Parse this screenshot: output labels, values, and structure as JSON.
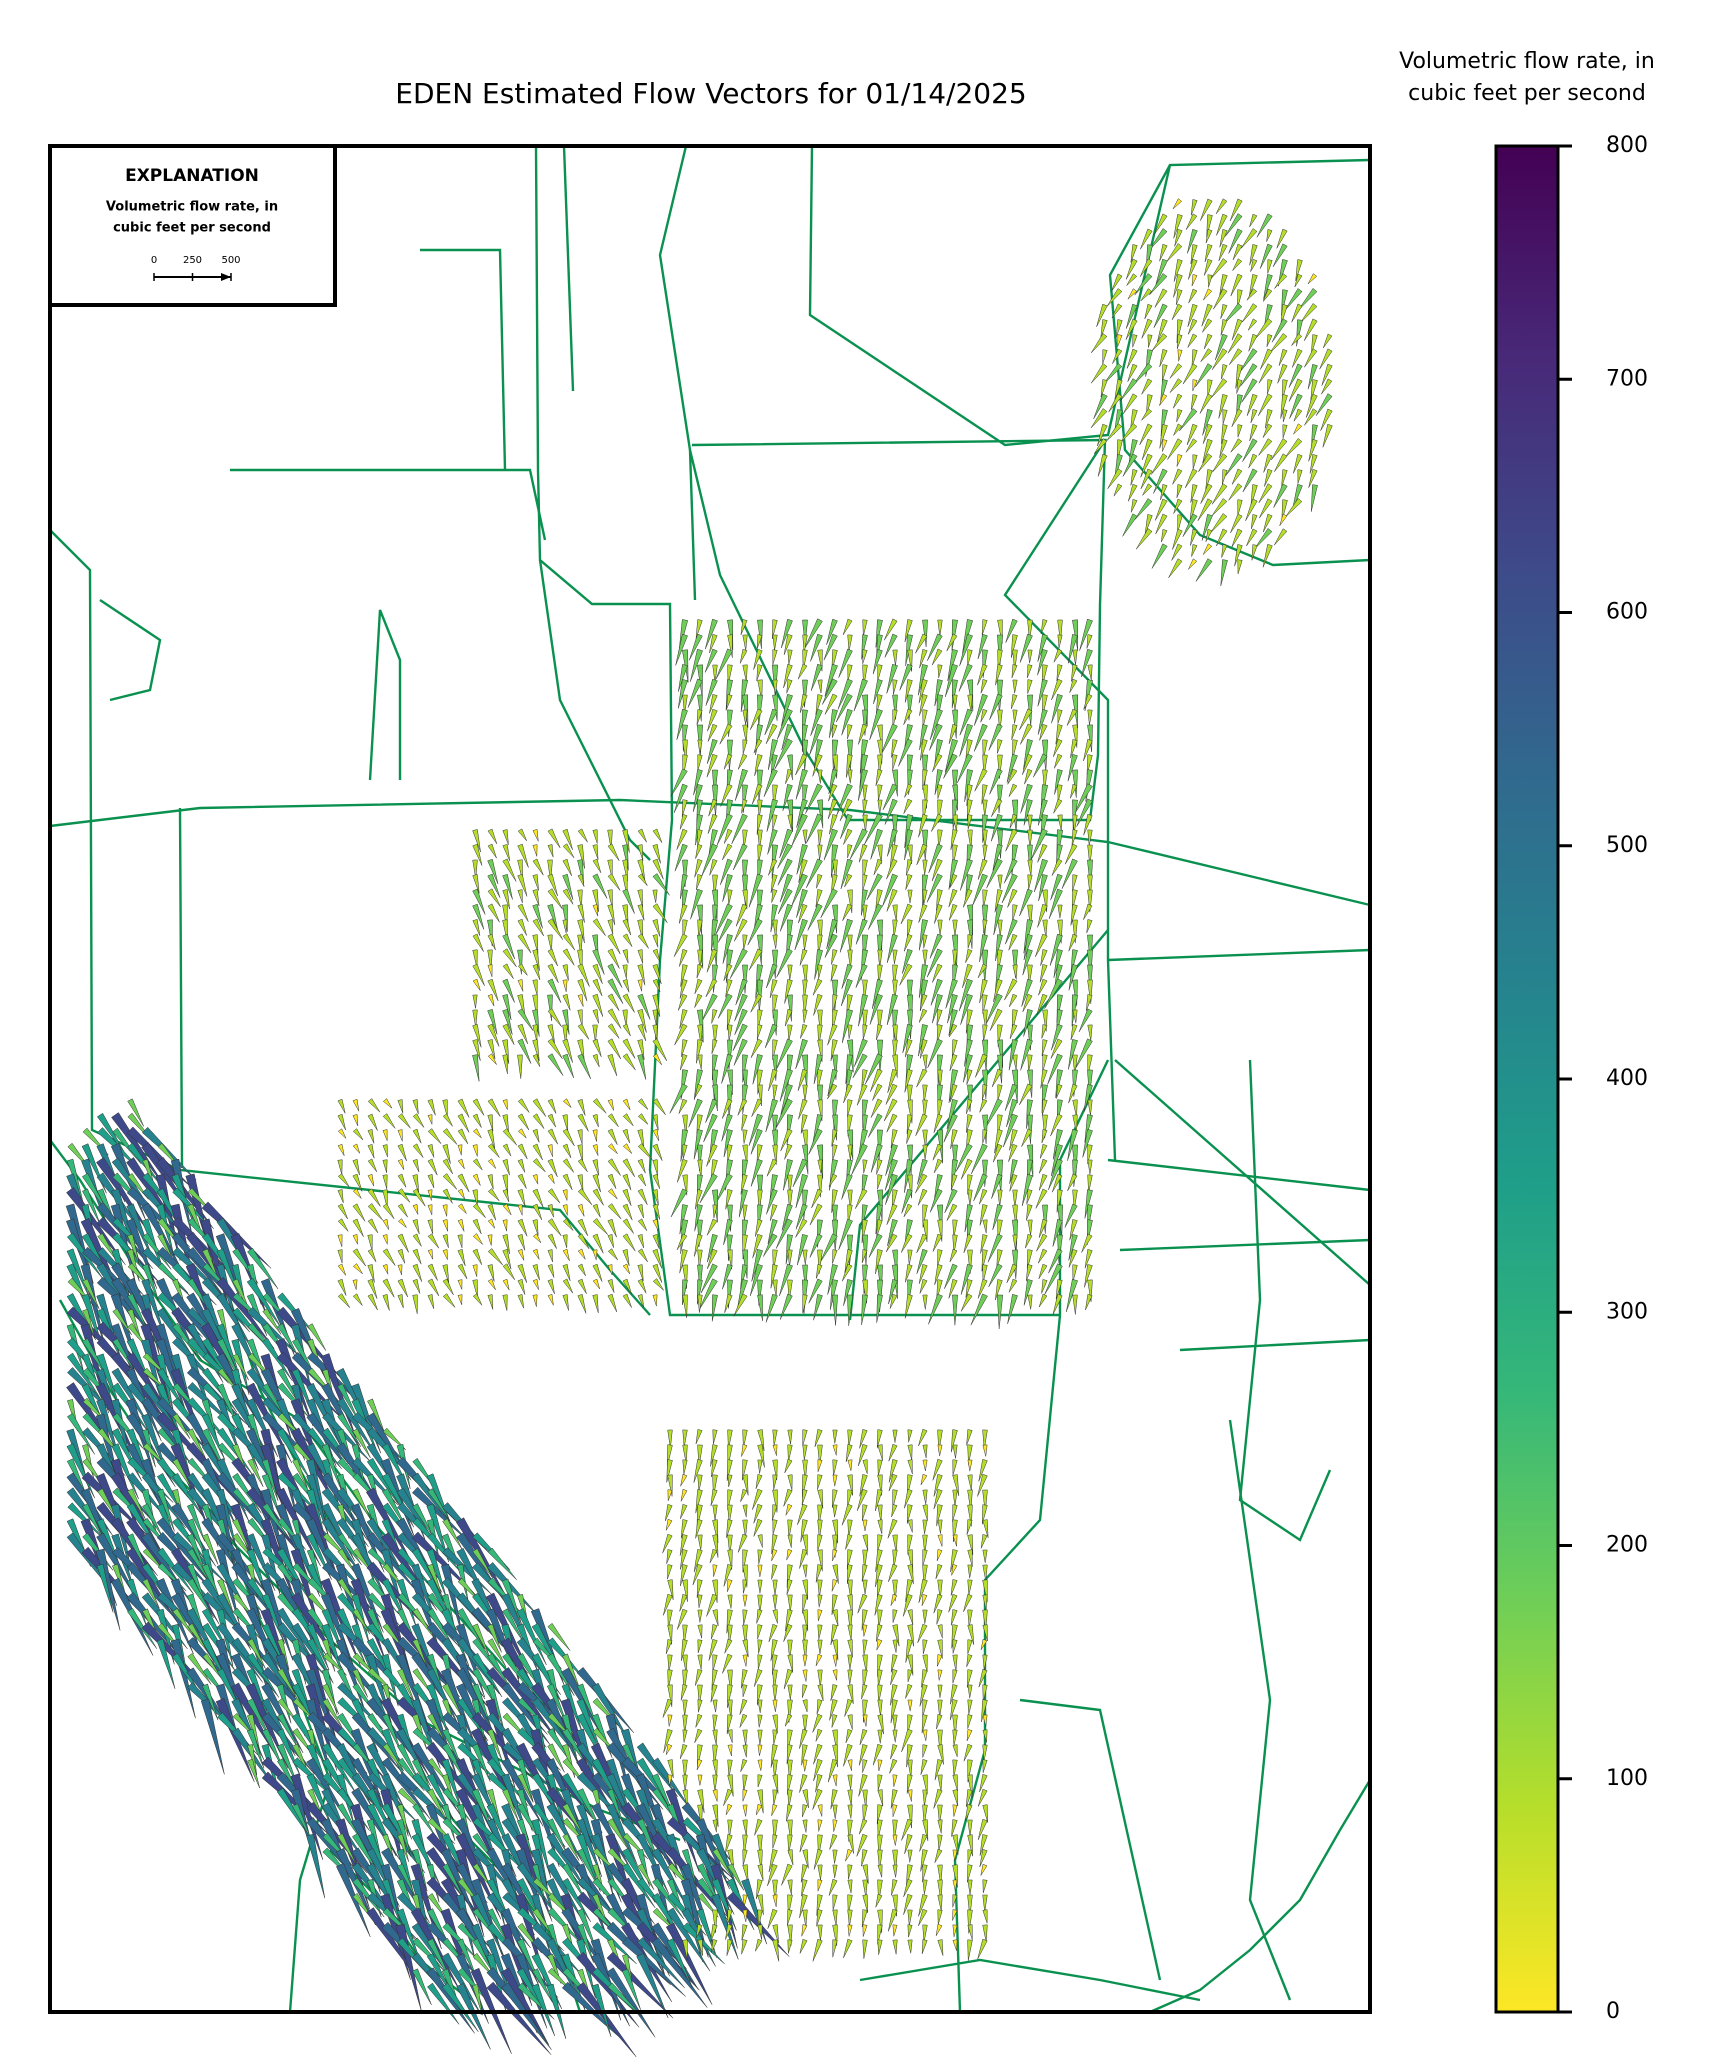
{
  "title": "EDEN Estimated Flow Vectors for 01/14/2025",
  "colorbar": {
    "label_lines": [
      "Volumetric flow rate, in",
      "cubic feet per second"
    ],
    "lim": [
      0,
      800
    ],
    "ticks": [
      0,
      100,
      200,
      300,
      400,
      500,
      600,
      700,
      800
    ],
    "colormap": [
      "#fde725",
      "#b5de2b",
      "#6ece58",
      "#35b779",
      "#1f9e89",
      "#26828e",
      "#31688e",
      "#3e4989",
      "#482878",
      "#440154"
    ]
  },
  "explanation": {
    "title": "EXPLANATION",
    "label_lines": [
      "Volumetric flow rate, in",
      "cubic feet per second"
    ],
    "scale_ticks": [
      0,
      250,
      500
    ]
  }
}
